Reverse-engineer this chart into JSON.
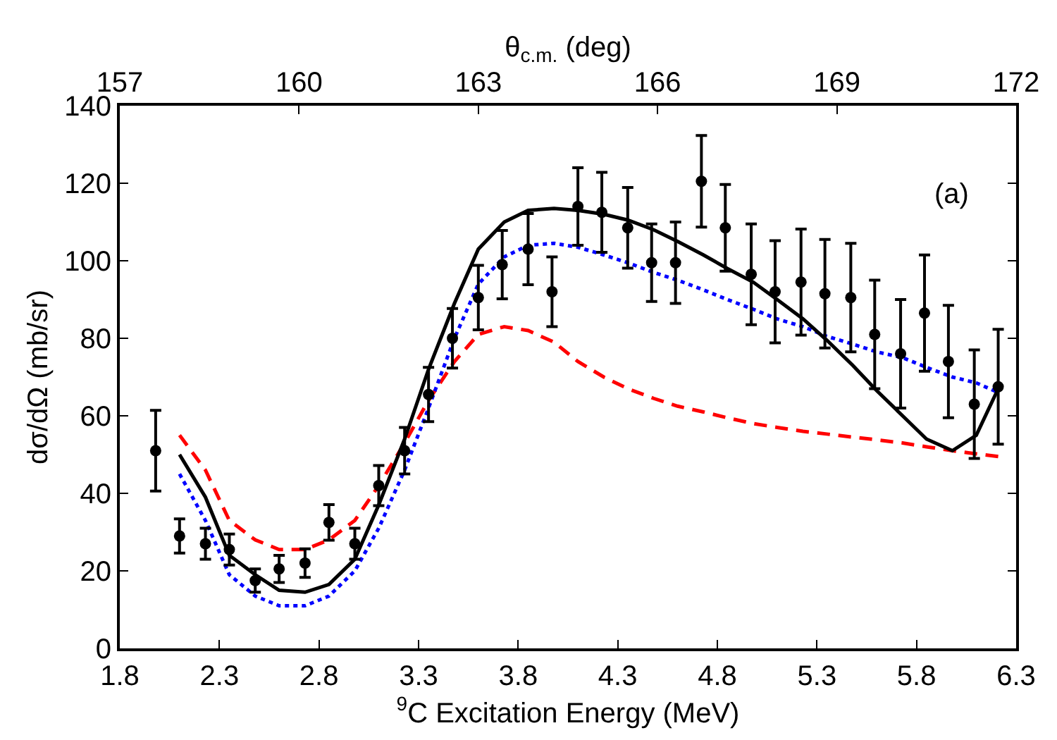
{
  "chart_data": {
    "type": "scatter",
    "xlabel": "$^{9}$C Excitation Energy (MeV)",
    "ylabel": "dσ/dΩ (mb/sr)",
    "x2label": "θ$_{c.m.}$ (deg)",
    "annotations": [
      "(a)"
    ],
    "xlim": [
      1.8,
      6.3
    ],
    "xticks": [
      1.8,
      2.3,
      2.8,
      3.3,
      3.8,
      4.3,
      4.8,
      5.3,
      5.8,
      6.3
    ],
    "x2lim": [
      157,
      172
    ],
    "x2ticks": [
      157,
      160,
      163,
      166,
      169,
      172
    ],
    "ylim": [
      0,
      140
    ],
    "yticks": [
      0,
      20,
      40,
      60,
      80,
      100,
      120,
      140
    ],
    "series": [
      {
        "type": "line",
        "color": "#ff0000",
        "line_style": "dashed",
        "marker": "none",
        "x": [
          2.1,
          2.23,
          2.35,
          2.48,
          2.6,
          2.73,
          2.85,
          2.98,
          3.1,
          3.23,
          3.35,
          3.48,
          3.6,
          3.73,
          3.85,
          3.98,
          4.1,
          4.23,
          4.35,
          4.48,
          4.6,
          4.73,
          4.85,
          4.98,
          5.1,
          5.23,
          5.35,
          5.48,
          5.6,
          5.73,
          5.85,
          5.98,
          6.1,
          6.21
        ],
        "values": [
          55,
          46,
          33,
          28,
          25.5,
          25.5,
          28,
          33,
          42,
          53,
          64,
          74,
          81,
          83,
          82,
          79,
          74,
          70,
          67,
          64.5,
          62.5,
          61,
          59.5,
          58,
          57,
          56,
          55.3,
          54.5,
          53.8,
          53,
          52,
          51,
          50.2,
          49.5
        ]
      },
      {
        "type": "line",
        "color": "#0000ff",
        "line_style": "dotted",
        "marker": "none",
        "x": [
          2.1,
          2.23,
          2.35,
          2.48,
          2.6,
          2.73,
          2.85,
          2.98,
          3.1,
          3.23,
          3.35,
          3.48,
          3.6,
          3.73,
          3.85,
          3.98,
          4.1,
          4.23,
          4.35,
          4.48,
          4.6,
          4.73,
          4.85,
          4.98,
          5.1,
          5.23,
          5.35,
          5.48,
          5.6,
          5.73,
          5.85,
          5.98,
          6.1,
          6.21
        ],
        "values": [
          45,
          33,
          19,
          13.5,
          11,
          11,
          13.5,
          20,
          31,
          46,
          62,
          80,
          94,
          101,
          104,
          104.5,
          103.5,
          101.5,
          99.5,
          97,
          95,
          92.5,
          90,
          87.5,
          85,
          83,
          80.5,
          78.5,
          76.5,
          75,
          72.5,
          70,
          68.5,
          66
        ]
      },
      {
        "type": "line",
        "color": "#000000",
        "line_style": "solid",
        "marker": "none",
        "x": [
          2.1,
          2.23,
          2.35,
          2.48,
          2.6,
          2.73,
          2.85,
          2.98,
          3.1,
          3.23,
          3.35,
          3.48,
          3.6,
          3.73,
          3.85,
          3.98,
          4.1,
          4.23,
          4.35,
          4.48,
          4.6,
          4.73,
          4.85,
          4.98,
          5.1,
          5.23,
          5.35,
          5.48,
          5.6,
          5.73,
          5.85,
          5.98,
          6.1,
          6.21
        ],
        "values": [
          50,
          39,
          24,
          19,
          15,
          14.5,
          16.5,
          23,
          37,
          54,
          72,
          89,
          103,
          110,
          113,
          113.5,
          113,
          112,
          110.5,
          108,
          105,
          101.5,
          98,
          94.5,
          90,
          85,
          79.5,
          73,
          66.5,
          60,
          54,
          51,
          55,
          67
        ]
      },
      {
        "color": "#000000",
        "marker": "circle",
        "x": [
          1.98,
          2.1,
          2.23,
          2.35,
          2.48,
          2.6,
          2.73,
          2.85,
          2.98,
          3.1,
          3.23,
          3.35,
          3.47,
          3.6,
          3.72,
          3.85,
          3.97,
          4.1,
          4.22,
          4.35,
          4.47,
          4.59,
          4.72,
          4.84,
          4.97,
          5.09,
          5.22,
          5.34,
          5.47,
          5.59,
          5.72,
          5.84,
          5.96,
          6.09,
          6.21
        ],
        "values": [
          51,
          29,
          27,
          25.5,
          17.5,
          20.5,
          22,
          32.5,
          27,
          42,
          51,
          65.5,
          80,
          90.5,
          99,
          103,
          92,
          114,
          112.5,
          108.5,
          99.5,
          99.5,
          120.5,
          108.5,
          96.5,
          92,
          94.5,
          91.5,
          90.5,
          81,
          76,
          86.5,
          74,
          63,
          67.5
        ],
        "errors": [
          10.4,
          4.4,
          4,
          4,
          3,
          3.5,
          3.7,
          4.6,
          4,
          5.2,
          6,
          7,
          7.7,
          8.3,
          8.8,
          9.2,
          9,
          10,
          10.3,
          10.4,
          10,
          10.5,
          11.8,
          11.2,
          13,
          13.2,
          13.7,
          14,
          14,
          14,
          14,
          15,
          14.5,
          14,
          14.8
        ]
      }
    ]
  }
}
